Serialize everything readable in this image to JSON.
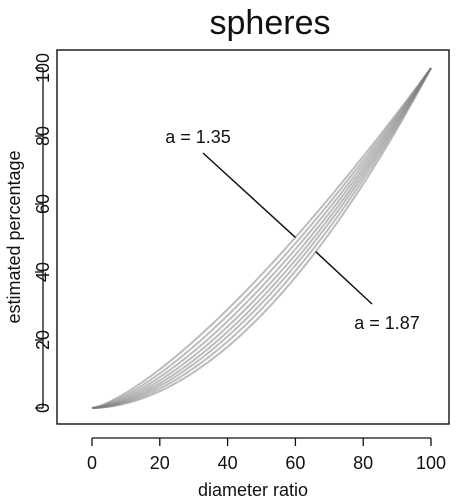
{
  "chart_data": {
    "type": "line",
    "title": "spheres",
    "xlabel": "diameter ratio",
    "ylabel": "estimated percentage",
    "xlim": [
      0,
      100
    ],
    "ylim": [
      0,
      100
    ],
    "xticks": [
      0,
      20,
      40,
      60,
      80,
      100
    ],
    "yticks": [
      0,
      20,
      40,
      60,
      80,
      100
    ],
    "grid": false,
    "series_color": "#7a7a7a",
    "exponents": [
      1.35,
      1.42,
      1.49,
      1.56,
      1.63,
      1.7,
      1.78,
      1.87
    ],
    "curve_formula": "y = 100 * (x/100)^a",
    "annotations": [
      {
        "text": "a = 1.35",
        "target_exponent": 1.35,
        "target_x": 60
      },
      {
        "text": "a = 1.87",
        "target_exponent": 1.87,
        "target_x": 66
      }
    ]
  }
}
